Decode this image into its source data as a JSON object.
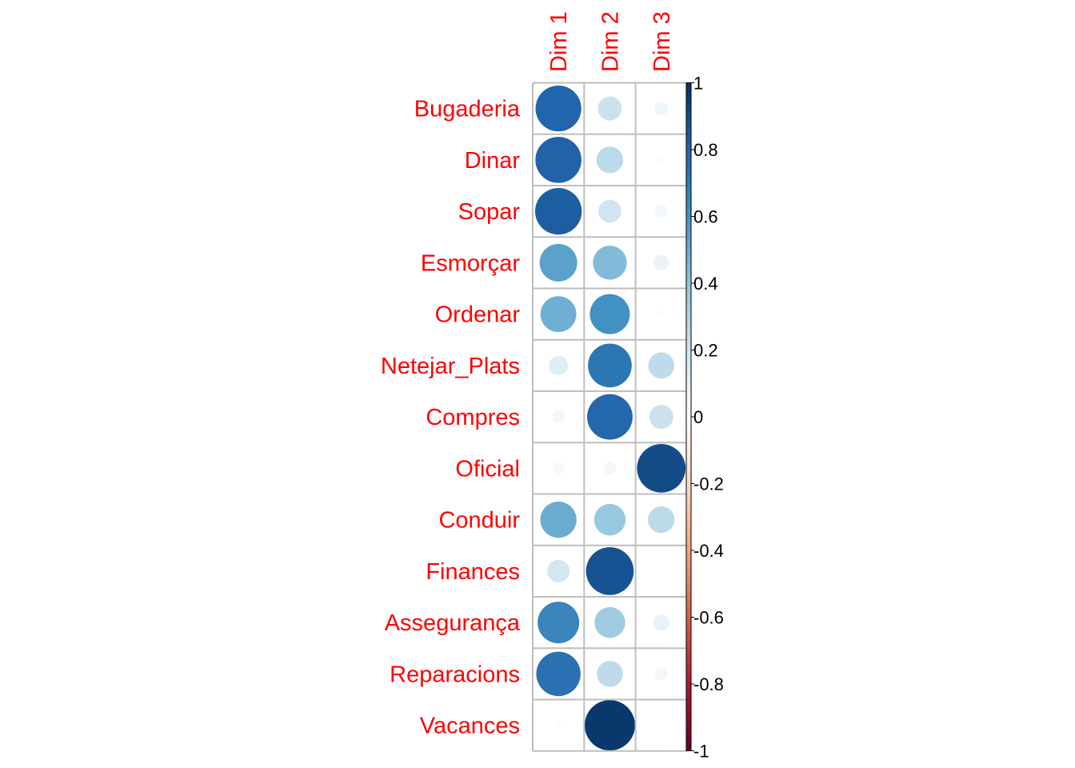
{
  "chart_data": {
    "type": "heatmap",
    "title": "",
    "columns": [
      "Dim 1",
      "Dim 2",
      "Dim 3"
    ],
    "rows": [
      "Bugaderia",
      "Dinar",
      "Sopar",
      "Esmorçar",
      "Ordenar",
      "Netejar_Plats",
      "Compres",
      "Oficial",
      "Conduir",
      "Finances",
      "Assegurança",
      "Reparacions",
      "Vacances"
    ],
    "values": [
      [
        0.8,
        0.22,
        0.07
      ],
      [
        0.81,
        0.27,
        0.02
      ],
      [
        0.83,
        0.2,
        0.06
      ],
      [
        0.54,
        0.44,
        0.09
      ],
      [
        0.49,
        0.61,
        0.02
      ],
      [
        0.14,
        0.73,
        0.26
      ],
      [
        0.06,
        0.79,
        0.22
      ],
      [
        0.05,
        0.06,
        0.9
      ],
      [
        0.5,
        0.38,
        0.27
      ],
      [
        0.19,
        0.87,
        0.0
      ],
      [
        0.66,
        0.36,
        0.1
      ],
      [
        0.75,
        0.26,
        0.06
      ],
      [
        0.02,
        0.97,
        0.0
      ]
    ],
    "colorbar": {
      "ticks": [
        "-1",
        "-0.8",
        "-0.6",
        "-0.4",
        "-0.2",
        "0",
        "0.2",
        "0.4",
        "0.6",
        "0.8",
        "1"
      ],
      "range": [
        -1,
        1
      ]
    },
    "grid": true,
    "legend": "right",
    "colors": {
      "label": "#ff0000",
      "grid": "#bebebe",
      "scale": [
        "#67001f",
        "#b2182b",
        "#d6604d",
        "#f4a582",
        "#fddbc7",
        "#ffffff",
        "#d1e5f0",
        "#92c5de",
        "#4393c3",
        "#2166ac",
        "#053061"
      ]
    }
  }
}
